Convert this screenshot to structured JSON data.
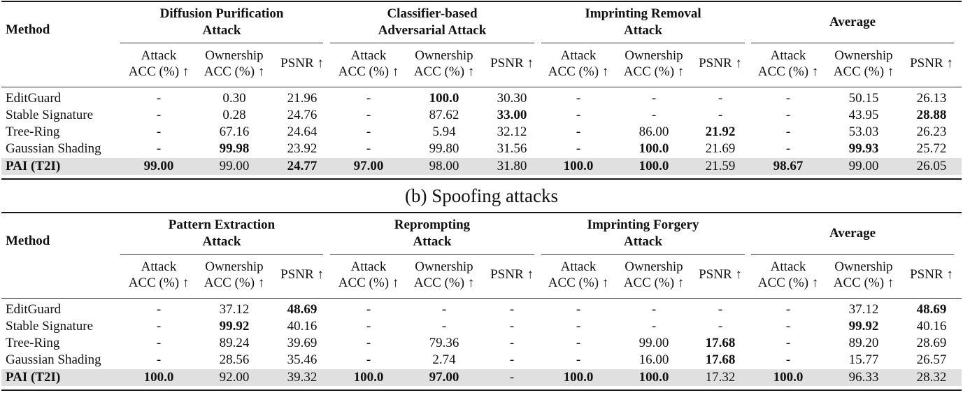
{
  "caption_b": "(b) Spoofing attacks",
  "column_headers": {
    "method": "Method",
    "sub": {
      "attack_l1": "Attack",
      "attack_l2": "ACC (%) ↑",
      "own_l1": "Ownership",
      "own_l2": "ACC (%) ↑",
      "psnr": "PSNR ↑"
    }
  },
  "table_a": {
    "groups": [
      {
        "l1": "Diffusion Purification",
        "l2": "Attack"
      },
      {
        "l1": "Classifier-based",
        "l2": "Adversarial Attack"
      },
      {
        "l1": "Imprinting Removal",
        "l2": "Attack"
      },
      {
        "l1": "Average",
        "l2": ""
      }
    ],
    "rows": [
      {
        "method": "EditGuard",
        "cells": [
          "-",
          "0.30",
          "21.96",
          "-",
          "100.0",
          "30.30",
          "-",
          "-",
          "-",
          "-",
          "50.15",
          "26.13"
        ],
        "bold": [
          4
        ]
      },
      {
        "method": "Stable Signature",
        "cells": [
          "-",
          "0.28",
          "24.76",
          "-",
          "87.62",
          "33.00",
          "-",
          "-",
          "-",
          "-",
          "43.95",
          "28.88"
        ],
        "bold": [
          5,
          11
        ]
      },
      {
        "method": "Tree-Ring",
        "cells": [
          "-",
          "67.16",
          "24.64",
          "-",
          "5.94",
          "32.12",
          "-",
          "86.00",
          "21.92",
          "-",
          "53.03",
          "26.23"
        ],
        "bold": [
          8
        ]
      },
      {
        "method": "Gaussian Shading",
        "cells": [
          "-",
          "99.98",
          "23.92",
          "-",
          "99.80",
          "31.56",
          "-",
          "100.0",
          "21.69",
          "-",
          "99.93",
          "25.72"
        ],
        "bold": [
          1,
          7,
          10
        ]
      },
      {
        "method": "PAI (T2I)",
        "cells": [
          "99.00",
          "99.00",
          "24.77",
          "97.00",
          "98.00",
          "31.80",
          "100.0",
          "100.0",
          "21.59",
          "98.67",
          "99.00",
          "26.05"
        ],
        "bold": [
          0,
          2,
          3,
          6,
          7,
          9
        ],
        "highlight": true
      }
    ]
  },
  "table_b": {
    "groups": [
      {
        "l1": "Pattern Extraction",
        "l2": "Attack"
      },
      {
        "l1": "Reprompting",
        "l2": "Attack"
      },
      {
        "l1": "Imprinting Forgery",
        "l2": "Attack"
      },
      {
        "l1": "Average",
        "l2": ""
      }
    ],
    "rows": [
      {
        "method": "EditGuard",
        "cells": [
          "-",
          "37.12",
          "48.69",
          "-",
          "-",
          "-",
          "-",
          "-",
          "-",
          "-",
          "37.12",
          "48.69"
        ],
        "bold": [
          2,
          11
        ]
      },
      {
        "method": "Stable Signature",
        "cells": [
          "-",
          "99.92",
          "40.16",
          "-",
          "-",
          "-",
          "-",
          "-",
          "-",
          "-",
          "99.92",
          "40.16"
        ],
        "bold": [
          1,
          10
        ]
      },
      {
        "method": "Tree-Ring",
        "cells": [
          "-",
          "89.24",
          "39.69",
          "-",
          "79.36",
          "-",
          "-",
          "99.00",
          "17.68",
          "-",
          "89.20",
          "28.69"
        ],
        "bold": [
          8
        ]
      },
      {
        "method": "Gaussian Shading",
        "cells": [
          "-",
          "28.56",
          "35.46",
          "-",
          "2.74",
          "-",
          "-",
          "16.00",
          "17.68",
          "-",
          "15.77",
          "26.57"
        ],
        "bold": [
          8
        ]
      },
      {
        "method": "PAI (T2I)",
        "cells": [
          "100.0",
          "92.00",
          "39.32",
          "100.0",
          "97.00",
          "-",
          "100.0",
          "100.0",
          "17.32",
          "100.0",
          "96.33",
          "28.32"
        ],
        "bold": [
          0,
          3,
          4,
          6,
          7,
          9
        ],
        "highlight": true
      }
    ]
  }
}
